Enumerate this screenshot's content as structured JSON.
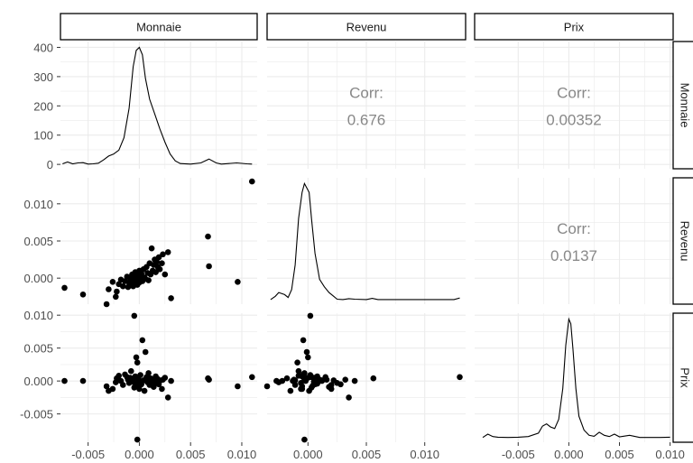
{
  "chart_data": {
    "type": "scatter-matrix",
    "variables": [
      "Monnaie",
      "Revenu",
      "Prix"
    ],
    "corr_label": "Corr:",
    "correlations": {
      "Monnaie_Revenu": "0.676",
      "Monnaie_Prix": "0.00352",
      "Revenu_Prix": "0.0137"
    },
    "x_ticks": {
      "Monnaie": [
        -0.005,
        0.0,
        0.005,
        0.01
      ],
      "Revenu": [
        0.0,
        0.005,
        0.01
      ],
      "Prix": [
        -0.005,
        0.0,
        0.005,
        0.01
      ]
    },
    "x_tick_labels": {
      "Monnaie": [
        "-0.005",
        "0.000",
        "0.005",
        "0.010"
      ],
      "Revenu": [
        "0.000",
        "0.005",
        "0.010"
      ],
      "Prix": [
        "-0.005",
        "0.000",
        "0.005",
        "0.010"
      ]
    },
    "x_range": {
      "Monnaie": [
        -0.0077,
        0.0115
      ],
      "Revenu": [
        -0.0035,
        0.0135
      ],
      "Prix": [
        -0.0093,
        0.0103
      ]
    },
    "density_y_ticks": [
      0,
      100,
      200,
      300,
      400
    ],
    "density_y_range": [
      -15,
      420
    ],
    "y_ticks": {
      "Revenu": [
        -0.0,
        0.005,
        0.01
      ],
      "Prix": [
        -0.005,
        0.0,
        0.005,
        0.01
      ]
    },
    "y_tick_labels": {
      "Revenu": [
        "0.000",
        "0.005",
        "0.010"
      ],
      "Prix": [
        "-0.005",
        "0.000",
        "0.005",
        "0.010"
      ]
    },
    "y_range": {
      "Revenu": [
        -0.0035,
        0.0135
      ],
      "Prix": [
        -0.0093,
        0.0103
      ]
    },
    "densities": {
      "Monnaie": [
        [
          -0.0075,
          2
        ],
        [
          -0.007,
          8
        ],
        [
          -0.0065,
          2
        ],
        [
          -0.006,
          5
        ],
        [
          -0.0055,
          6
        ],
        [
          -0.005,
          1
        ],
        [
          -0.0045,
          2
        ],
        [
          -0.004,
          4
        ],
        [
          -0.0035,
          15
        ],
        [
          -0.003,
          28
        ],
        [
          -0.0025,
          35
        ],
        [
          -0.002,
          48
        ],
        [
          -0.0015,
          90
        ],
        [
          -0.001,
          190
        ],
        [
          -0.0006,
          330
        ],
        [
          -0.0003,
          385
        ],
        [
          0.0,
          395
        ],
        [
          0.0003,
          370
        ],
        [
          0.0006,
          290
        ],
        [
          0.001,
          220
        ],
        [
          0.0015,
          170
        ],
        [
          0.002,
          120
        ],
        [
          0.0025,
          75
        ],
        [
          0.003,
          35
        ],
        [
          0.0035,
          12
        ],
        [
          0.004,
          3
        ],
        [
          0.005,
          1
        ],
        [
          0.006,
          5
        ],
        [
          0.0068,
          18
        ],
        [
          0.0075,
          5
        ],
        [
          0.008,
          1
        ],
        [
          0.0095,
          5
        ],
        [
          0.0105,
          2
        ],
        [
          0.011,
          1
        ]
      ],
      "Revenu": [
        [
          -0.0032,
          1
        ],
        [
          -0.0028,
          12
        ],
        [
          -0.0025,
          25
        ],
        [
          -0.002,
          18
        ],
        [
          -0.0017,
          8
        ],
        [
          -0.0014,
          35
        ],
        [
          -0.0011,
          120
        ],
        [
          -0.0008,
          280
        ],
        [
          -0.0005,
          370
        ],
        [
          -0.0003,
          400
        ],
        [
          -0.0001,
          385
        ],
        [
          0.0001,
          370
        ],
        [
          0.0003,
          280
        ],
        [
          0.0006,
          160
        ],
        [
          0.001,
          70
        ],
        [
          0.0014,
          45
        ],
        [
          0.0018,
          25
        ],
        [
          0.0022,
          12
        ],
        [
          0.0025,
          2
        ],
        [
          0.003,
          1
        ],
        [
          0.0035,
          4
        ],
        [
          0.004,
          2
        ],
        [
          0.005,
          1
        ],
        [
          0.0055,
          5
        ],
        [
          0.006,
          1
        ],
        [
          0.008,
          1
        ],
        [
          0.01,
          1
        ],
        [
          0.0125,
          1
        ],
        [
          0.013,
          6
        ]
      ],
      "Prix": [
        [
          -0.0085,
          1
        ],
        [
          -0.008,
          12
        ],
        [
          -0.0075,
          4
        ],
        [
          -0.007,
          2
        ],
        [
          -0.006,
          1
        ],
        [
          -0.005,
          2
        ],
        [
          -0.004,
          4
        ],
        [
          -0.003,
          15
        ],
        [
          -0.0026,
          38
        ],
        [
          -0.0022,
          45
        ],
        [
          -0.0018,
          35
        ],
        [
          -0.0014,
          30
        ],
        [
          -0.001,
          60
        ],
        [
          -0.0006,
          160
        ],
        [
          -0.0003,
          300
        ],
        [
          0.0,
          385
        ],
        [
          0.0002,
          370
        ],
        [
          0.0004,
          290
        ],
        [
          0.0007,
          160
        ],
        [
          0.001,
          70
        ],
        [
          0.0015,
          25
        ],
        [
          0.002,
          8
        ],
        [
          0.0025,
          5
        ],
        [
          0.003,
          18
        ],
        [
          0.0035,
          8
        ],
        [
          0.004,
          4
        ],
        [
          0.0045,
          12
        ],
        [
          0.005,
          3
        ],
        [
          0.006,
          8
        ],
        [
          0.007,
          1
        ],
        [
          0.009,
          1
        ],
        [
          0.01,
          2
        ]
      ]
    },
    "points": [
      {
        "m": -0.0073,
        "r": -0.0013,
        "p": 0.0
      },
      {
        "m": -0.0055,
        "r": -0.0022,
        "p": 0.0
      },
      {
        "m": -0.0032,
        "r": -0.0035,
        "p": -0.0008
      },
      {
        "m": -0.003,
        "r": -0.0015,
        "p": -0.0015
      },
      {
        "m": -0.0026,
        "r": -0.0005,
        "p": -0.0012
      },
      {
        "m": -0.0023,
        "r": -0.0025,
        "p": -0.0002
      },
      {
        "m": -0.0022,
        "r": -0.0018,
        "p": 0.0004
      },
      {
        "m": -0.002,
        "r": -0.0008,
        "p": 0.0008
      },
      {
        "m": -0.0018,
        "r": -0.0002,
        "p": 0.0
      },
      {
        "m": -0.0016,
        "r": -0.0011,
        "p": -0.0006
      },
      {
        "m": -0.0014,
        "r": -0.0004,
        "p": 0.001
      },
      {
        "m": -0.0012,
        "r": 0.0002,
        "p": 0.0006
      },
      {
        "m": -0.0011,
        "r": -0.0012,
        "p": 0.0002
      },
      {
        "m": -0.001,
        "r": -0.0006,
        "p": -0.0003
      },
      {
        "m": -0.0009,
        "r": 0.0,
        "p": 0.0005
      },
      {
        "m": -0.0008,
        "r": -0.0008,
        "p": 0.0015
      },
      {
        "m": -0.0007,
        "r": 0.0005,
        "p": -0.0001
      },
      {
        "m": -0.0006,
        "r": -0.0003,
        "p": 0.0002
      },
      {
        "m": -0.0006,
        "r": -0.0011,
        "p": 0.0001
      },
      {
        "m": -0.0005,
        "r": 0.0003,
        "p": -0.001
      },
      {
        "m": -0.0004,
        "r": -0.0005,
        "p": 0.0007
      },
      {
        "m": -0.0004,
        "r": 0.0008,
        "p": -0.0004
      },
      {
        "m": -0.0003,
        "r": 0.0,
        "p": 0.0036
      },
      {
        "m": -0.0002,
        "r": -0.0009,
        "p": 0.0028
      },
      {
        "m": -0.0002,
        "r": 0.0004,
        "p": -0.0007
      },
      {
        "m": -0.0001,
        "r": -0.0002,
        "p": 0.0003
      },
      {
        "m": 0.0,
        "r": 0.001,
        "p": 0.0
      },
      {
        "m": 0.0,
        "r": -0.0006,
        "p": -0.0012
      },
      {
        "m": 0.0001,
        "r": 0.0002,
        "p": 0.0009
      },
      {
        "m": 0.0002,
        "r": 0.0006,
        "p": -0.0005
      },
      {
        "m": 0.0003,
        "r": -0.0004,
        "p": 0.0062
      },
      {
        "m": 0.0004,
        "r": 0.0012,
        "p": 0.0001
      },
      {
        "m": 0.0005,
        "r": 0.0001,
        "p": -0.0015
      },
      {
        "m": 0.0006,
        "r": -0.0001,
        "p": 0.0044
      },
      {
        "m": 0.0007,
        "r": 0.0015,
        "p": 0.0006
      },
      {
        "m": 0.0008,
        "r": 0.0007,
        "p": -0.0002
      },
      {
        "m": 0.0009,
        "r": -0.0003,
        "p": 0.0012
      },
      {
        "m": 0.001,
        "r": 0.002,
        "p": -0.0006
      },
      {
        "m": 0.0011,
        "r": 0.0005,
        "p": 0.0004
      },
      {
        "m": 0.0012,
        "r": 0.004,
        "p": 0.0
      },
      {
        "m": 0.0013,
        "r": 0.001,
        "p": 0.0002
      },
      {
        "m": 0.0014,
        "r": 0.0018,
        "p": -0.0009
      },
      {
        "m": 0.0015,
        "r": 0.0025,
        "p": -0.0003
      },
      {
        "m": 0.0016,
        "r": 0.0008,
        "p": 0.0007
      },
      {
        "m": 0.0017,
        "r": 0.0022,
        "p": 0.0001
      },
      {
        "m": 0.0018,
        "r": 0.0015,
        "p": 0.0003
      },
      {
        "m": 0.0019,
        "r": 0.0028,
        "p": -0.0005
      },
      {
        "m": 0.002,
        "r": 0.0012,
        "p": 0.0
      },
      {
        "m": 0.0022,
        "r": 0.002,
        "p": -0.0012
      },
      {
        "m": 0.0023,
        "r": 0.0032,
        "p": 0.0002
      },
      {
        "m": 0.0025,
        "r": 0.0005,
        "p": 0.0005
      },
      {
        "m": 0.0028,
        "r": 0.0035,
        "p": -0.0025
      },
      {
        "m": 0.0031,
        "r": -0.0027,
        "p": 0.0
      },
      {
        "m": -0.0005,
        "r": 0.0002,
        "p": 0.0099
      },
      {
        "m": -0.0002,
        "r": -0.0003,
        "p": -0.0089
      },
      {
        "m": 0.0067,
        "r": 0.0056,
        "p": 0.0004
      },
      {
        "m": 0.0068,
        "r": 0.0016,
        "p": 0.0002
      },
      {
        "m": 0.0096,
        "r": -0.0005,
        "p": -0.0008
      },
      {
        "m": 0.011,
        "r": 0.013,
        "p": 0.0006
      }
    ]
  }
}
